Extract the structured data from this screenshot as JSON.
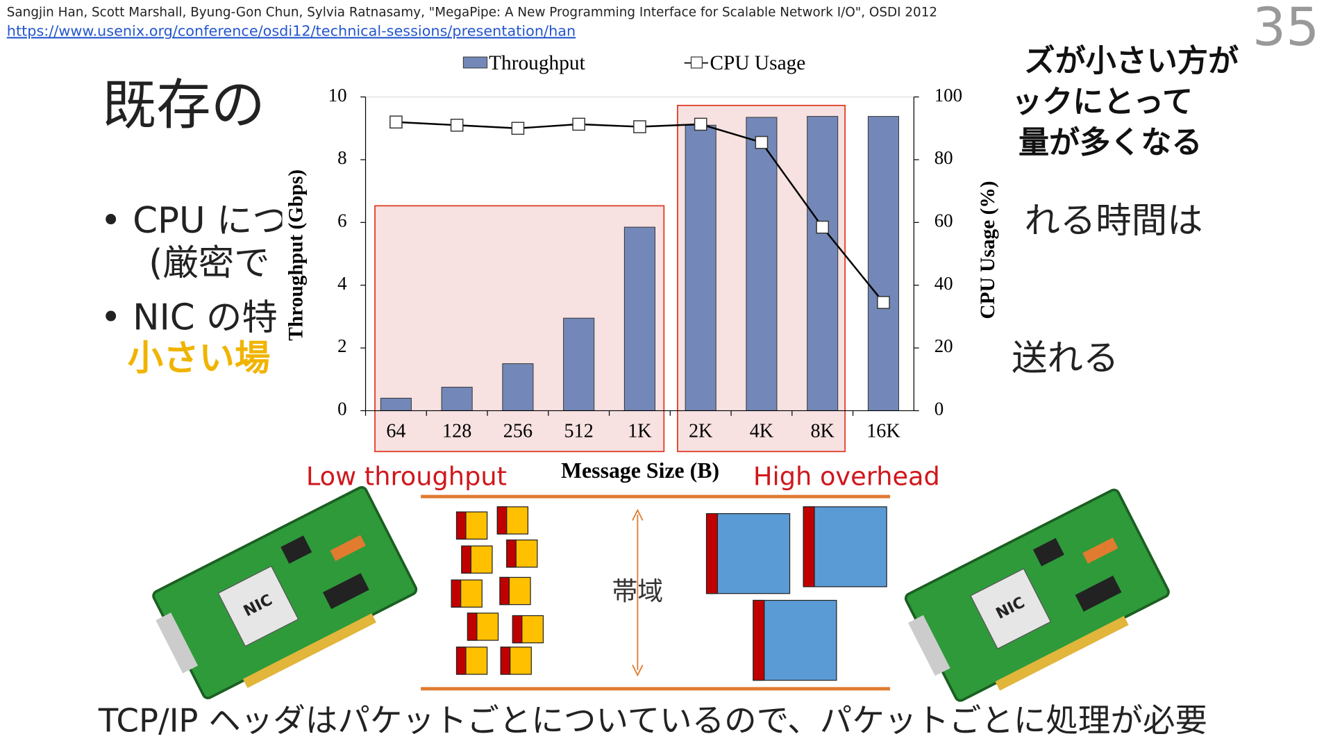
{
  "citation": "Sangjin Han, Scott Marshall, Byung-Gon Chun, Sylvia Ratnasamy, \"MegaPipe: A New Programming Interface for Scalable Network I/O\", OSDI 2012",
  "url": "https://www.usenix.org/conference/osdi12/technical-sessions/presentation/han",
  "page_number": "35",
  "title": "既存の",
  "left_fragments": [
    "• CPU につ",
    "(厳密で",
    "• NIC の特",
    "小さい場"
  ],
  "right_fragments": [
    "ズが小さい方が",
    "ックにとって",
    "量が多くなる",
    "れる時間は",
    "送れる"
  ],
  "annotations": {
    "low": "Low throughput",
    "high": "High overhead",
    "bandwidth": "帯域"
  },
  "nic_label": "NIC",
  "footer": "TCP/IP ヘッダはパケットごとについているので、パケットごとに処理が必要",
  "chart_data": {
    "type": "bar",
    "x_label": "Message Size (B)",
    "y_label": "Throughput (Gbps)",
    "y2_label": "CPU Usage (%)",
    "categories": [
      "64",
      "128",
      "256",
      "512",
      "1K",
      "2K",
      "4K",
      "8K",
      "16K"
    ],
    "series": [
      {
        "name": "Throughput",
        "type": "bar",
        "color": "#7388b8",
        "values": [
          0.4,
          0.75,
          1.5,
          2.95,
          5.85,
          9.1,
          9.35,
          9.38,
          9.38
        ]
      },
      {
        "name": "CPU Usage",
        "type": "line",
        "axis": "y2",
        "color": "#000000",
        "values": [
          92,
          91,
          90,
          91.3,
          90.5,
          91.3,
          85.5,
          58.5,
          34.5
        ]
      }
    ],
    "ylim": [
      0,
      10
    ],
    "yticks": [
      0,
      2,
      4,
      6,
      8,
      10
    ],
    "y2lim": [
      0,
      100
    ],
    "y2ticks": [
      0,
      20,
      40,
      60,
      80,
      100
    ],
    "legend": "top"
  }
}
